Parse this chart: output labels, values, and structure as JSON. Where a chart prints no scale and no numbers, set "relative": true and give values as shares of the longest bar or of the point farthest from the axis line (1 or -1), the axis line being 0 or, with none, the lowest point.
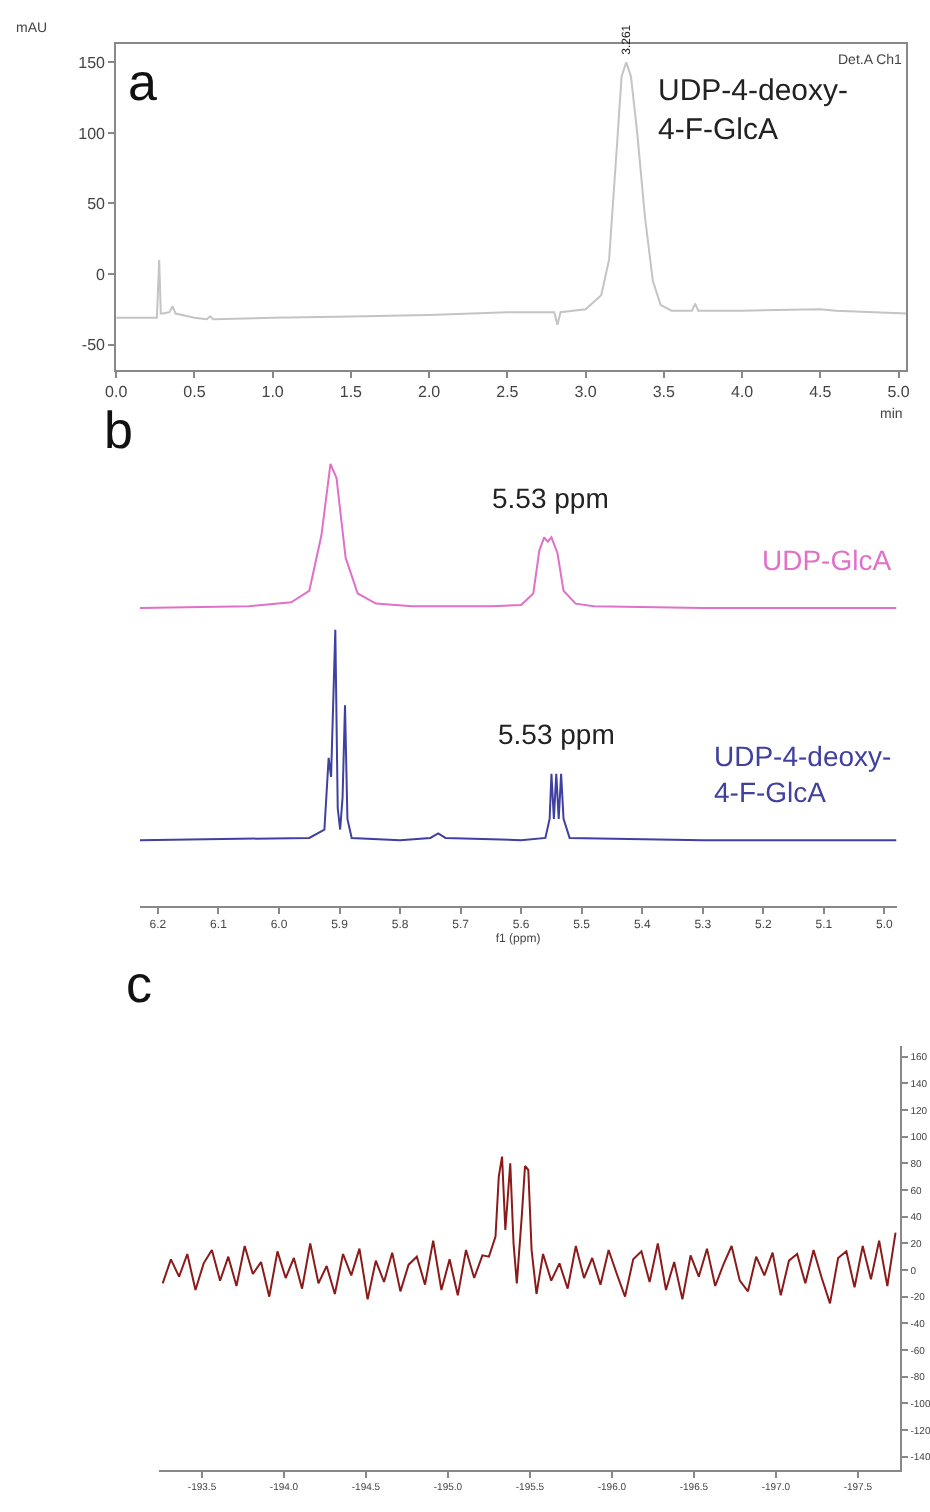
{
  "chart_data": [
    {
      "type": "line",
      "xlabel": "min",
      "ylabel": "mAU",
      "xlim": [
        0,
        5.05
      ],
      "ylim": [
        -68,
        163
      ],
      "xticks": [
        {
          "value": 0,
          "label": "0.0"
        },
        {
          "value": 0.5,
          "label": "0.5"
        },
        {
          "value": 1,
          "label": "1.0"
        },
        {
          "value": 1.5,
          "label": "1.5"
        },
        {
          "value": 2,
          "label": "2.0"
        },
        {
          "value": 2.5,
          "label": "2.5"
        },
        {
          "value": 3,
          "label": "3.0"
        },
        {
          "value": 3.5,
          "label": "3.5"
        },
        {
          "value": 4,
          "label": "4.0"
        },
        {
          "value": 4.5,
          "label": "4.5"
        },
        {
          "value": 5,
          "label": "5.0"
        }
      ],
      "yticks": [
        -50,
        0,
        50,
        100,
        150
      ],
      "annotations": [
        "a",
        "Det.A Ch1",
        {
          "text": "3.261",
          "x": 3.261,
          "y": 150
        }
      ],
      "series": [
        {
          "name": "UDP-4-deoxy-4-F-GlcA",
          "color": "#c4c4c4",
          "x": [
            0,
            0.26,
            0.275,
            0.285,
            0.3,
            0.34,
            0.36,
            0.38,
            0.5,
            0.58,
            0.6,
            0.62,
            1.0,
            1.5,
            2.0,
            2.5,
            2.8,
            2.82,
            2.84,
            3.0,
            3.1,
            3.15,
            3.2,
            3.23,
            3.26,
            3.29,
            3.33,
            3.38,
            3.43,
            3.48,
            3.55,
            3.68,
            3.7,
            3.72,
            3.8,
            4.0,
            4.5,
            4.6,
            5.05
          ],
          "values": [
            -31,
            -31,
            10,
            -28,
            -28,
            -27,
            -23,
            -28,
            -31,
            -32,
            -30,
            -32,
            -31,
            -30,
            -29,
            -27,
            -27,
            -36,
            -27,
            -25,
            -15,
            10,
            90,
            140,
            150,
            140,
            100,
            40,
            -5,
            -22,
            -26,
            -26,
            -21,
            -26,
            -26,
            -26,
            -25,
            -26,
            -28
          ]
        }
      ]
    },
    {
      "type": "line",
      "relative": true,
      "tick_labels": "x",
      "xlim": [
        6.23,
        4.98
      ],
      "xlabel": "f1 (ppm)",
      "xticks": [
        6.2,
        6.1,
        {
          "value": 6.0,
          "label": "6.0"
        },
        5.9,
        5.8,
        5.7,
        5.6,
        5.5,
        5.4,
        5.3,
        5.2,
        5.1,
        {
          "value": 5.0,
          "label": "5.0"
        }
      ],
      "annotations": [
        "b",
        {
          "text": "5.53 ppm",
          "x": 5.553,
          "y": 0.834
        },
        {
          "text": "5.53 ppm",
          "x": 5.542,
          "y": 0.299
        }
      ],
      "series": [
        {
          "name": "UDP-GlcA",
          "color": "#e070c8",
          "x": [
            6.23,
            6.05,
            5.98,
            5.95,
            5.93,
            5.915,
            5.905,
            5.89,
            5.87,
            5.84,
            5.78,
            5.65,
            5.6,
            5.58,
            5.57,
            5.562,
            5.556,
            5.55,
            5.54,
            5.53,
            5.51,
            5.48,
            5.3,
            4.98
          ],
          "values": [
            0.674,
            0.678,
            0.687,
            0.713,
            0.838,
            1,
            0.968,
            0.788,
            0.707,
            0.684,
            0.678,
            0.678,
            0.681,
            0.707,
            0.804,
            0.834,
            0.824,
            0.834,
            0.798,
            0.713,
            0.684,
            0.678,
            0.674,
            0.674
          ]
        },
        {
          "name": "UDP-4-deoxy-4-F-GlcA",
          "color": "#4040a0",
          "x": [
            6.23,
            5.95,
            5.925,
            5.918,
            5.914,
            5.911,
            5.907,
            5.903,
            5.899,
            5.895,
            5.891,
            5.887,
            5.88,
            5.8,
            5.75,
            5.737,
            5.725,
            5.6,
            5.56,
            5.553,
            5.55,
            5.546,
            5.542,
            5.538,
            5.534,
            5.53,
            5.52,
            5.3,
            4.98
          ],
          "values": [
            0.149,
            0.154,
            0.173,
            0.335,
            0.292,
            0.434,
            0.625,
            0.221,
            0.173,
            0.245,
            0.454,
            0.197,
            0.154,
            0.149,
            0.154,
            0.164,
            0.154,
            0.149,
            0.154,
            0.197,
            0.299,
            0.197,
            0.299,
            0.197,
            0.299,
            0.197,
            0.154,
            0.149,
            0.149
          ]
        }
      ]
    },
    {
      "type": "line",
      "xlim": [
        -193.24,
        -197.76
      ],
      "ylim": [
        -150,
        168
      ],
      "xticks": [
        -193.5,
        {
          "value": -194,
          "label": "-194.0"
        },
        -194.5,
        {
          "value": -195,
          "label": "-195.0"
        },
        -195.5,
        {
          "value": -196,
          "label": "-196.0"
        },
        -196.5,
        {
          "value": -197,
          "label": "-197.0"
        },
        -197.5
      ],
      "yticks": [
        -140,
        -120,
        -100,
        -80,
        -60,
        -40,
        -20,
        0,
        20,
        40,
        60,
        80,
        100,
        120,
        140,
        160
      ],
      "annotations": [
        "c"
      ],
      "series": [
        {
          "color": "#8b1a1a",
          "x": [
            -193.26,
            -193.31,
            -193.36,
            -193.41,
            -193.46,
            -193.51,
            -193.56,
            -193.61,
            -193.66,
            -193.71,
            -193.76,
            -193.81,
            -193.86,
            -193.91,
            -193.96,
            -194.01,
            -194.06,
            -194.11,
            -194.16,
            -194.21,
            -194.26,
            -194.31,
            -194.36,
            -194.41,
            -194.46,
            -194.51,
            -194.56,
            -194.61,
            -194.66,
            -194.71,
            -194.76,
            -194.81,
            -194.86,
            -194.91,
            -194.96,
            -195.01,
            -195.06,
            -195.11,
            -195.16,
            -195.21,
            -195.25,
            -195.29,
            -195.31,
            -195.33,
            -195.35,
            -195.38,
            -195.4,
            -195.42,
            -195.45,
            -195.47,
            -195.49,
            -195.51,
            -195.54,
            -195.58,
            -195.63,
            -195.68,
            -195.73,
            -195.78,
            -195.83,
            -195.88,
            -195.93,
            -195.98,
            -196.03,
            -196.08,
            -196.13,
            -196.18,
            -196.23,
            -196.28,
            -196.33,
            -196.38,
            -196.43,
            -196.48,
            -196.53,
            -196.58,
            -196.63,
            -196.68,
            -196.73,
            -196.78,
            -196.83,
            -196.88,
            -196.93,
            -196.98,
            -197.03,
            -197.08,
            -197.13,
            -197.18,
            -197.23,
            -197.28,
            -197.33,
            -197.38,
            -197.43,
            -197.48,
            -197.53,
            -197.58,
            -197.63,
            -197.68,
            -197.73
          ],
          "values": [
            -10,
            8,
            -5,
            12,
            -15,
            5,
            15,
            -8,
            10,
            -12,
            18,
            -3,
            6,
            -20,
            14,
            -6,
            9,
            -14,
            20,
            -10,
            3,
            -18,
            12,
            -4,
            16,
            -22,
            7,
            -9,
            13,
            -16,
            4,
            10,
            -11,
            22,
            -15,
            8,
            -19,
            15,
            -6,
            11,
            10,
            25,
            70,
            85,
            30,
            80,
            20,
            -10,
            40,
            78,
            75,
            15,
            -18,
            12,
            -8,
            5,
            -14,
            18,
            -6,
            9,
            -11,
            15,
            -3,
            -20,
            8,
            14,
            -9,
            20,
            -15,
            6,
            -22,
            11,
            -5,
            16,
            -12,
            4,
            18,
            -8,
            -16,
            10,
            -4,
            13,
            -19,
            7,
            12,
            -10,
            15,
            -6,
            -25,
            9,
            14,
            -13,
            18,
            -7,
            22,
            -12,
            28
          ]
        }
      ]
    }
  ]
}
